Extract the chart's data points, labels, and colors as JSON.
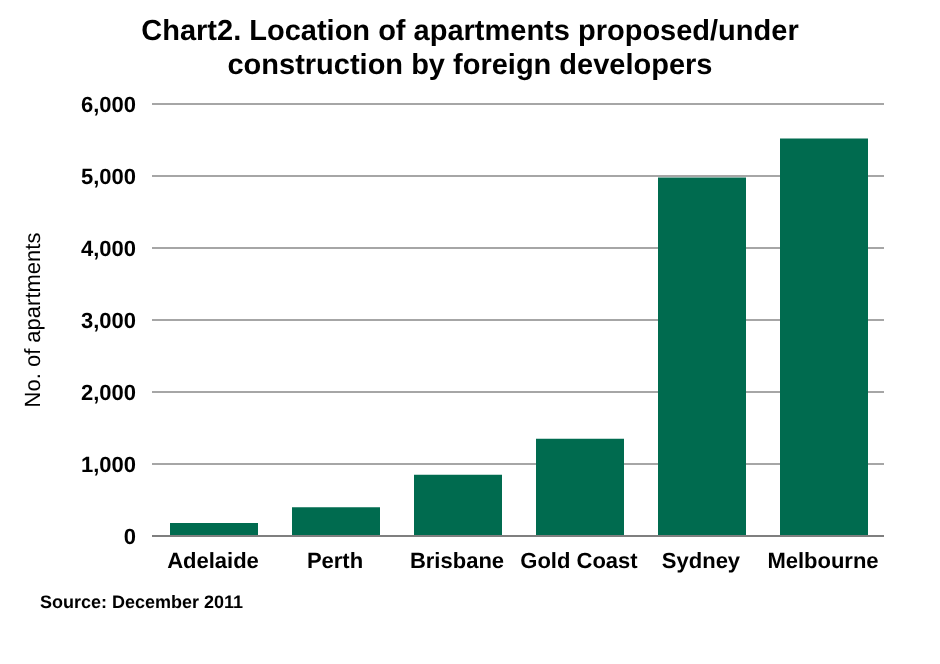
{
  "chart_data": {
    "type": "bar",
    "title": "Chart2. Location of apartments proposed/under construction by foreign developers",
    "ylabel": "No. of apartments",
    "categories": [
      "Adelaide",
      "Perth",
      "Brisbane",
      "Gold Coast",
      "Sydney",
      "Melbourne"
    ],
    "values": [
      180,
      400,
      850,
      1350,
      4980,
      5520
    ],
    "color": "#006b4f",
    "ylim": [
      0,
      6000
    ],
    "yticks": [
      {
        "value": 0,
        "label": "0"
      },
      {
        "value": 1000,
        "label": "1,000"
      },
      {
        "value": 2000,
        "label": "2,000"
      },
      {
        "value": 3000,
        "label": "3,000"
      },
      {
        "value": 4000,
        "label": "4,000"
      },
      {
        "value": 5000,
        "label": "5,000"
      },
      {
        "value": 6000,
        "label": "6,000"
      }
    ],
    "grid": "y",
    "annotations": [
      "Source: December 2011"
    ]
  }
}
